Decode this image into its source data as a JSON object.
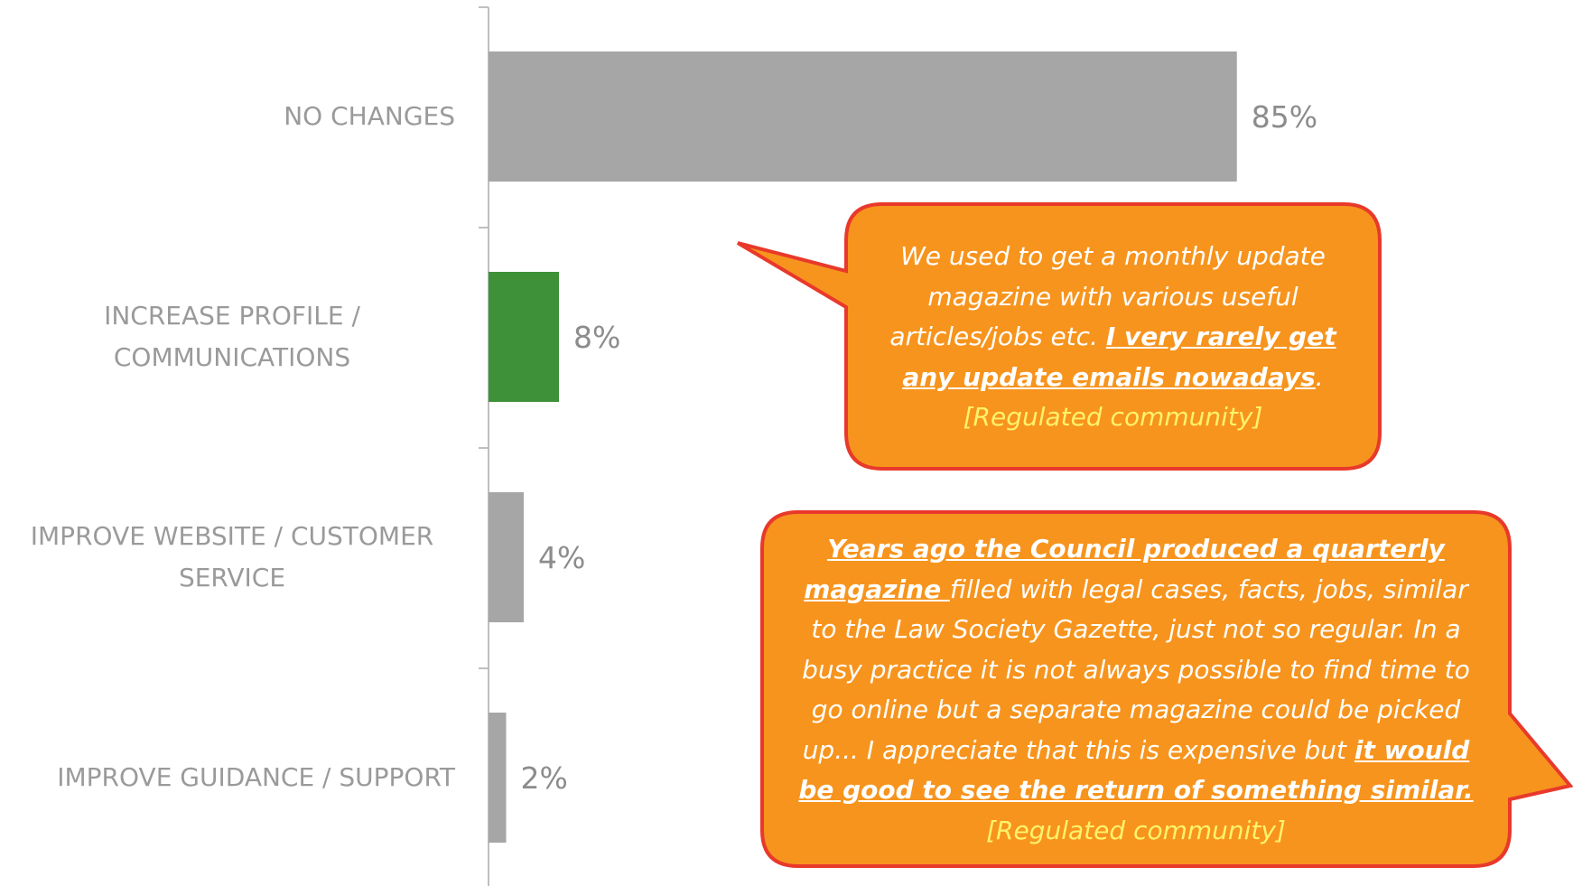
{
  "chart_data": {
    "type": "bar",
    "orientation": "horizontal",
    "categories": [
      "NO CHANGES",
      "INCREASE PROFILE / COMMUNICATIONS",
      "IMPROVE WEBSITE / CUSTOMER SERVICE",
      "IMPROVE GUIDANCE / SUPPORT"
    ],
    "values": [
      85,
      8,
      4,
      2
    ],
    "value_labels": [
      "85%",
      "8%",
      "4%",
      "2%"
    ],
    "colors": [
      "#a6a6a6",
      "#3e9139",
      "#a6a6a6",
      "#a6a6a6"
    ],
    "xlim": [
      0,
      100
    ],
    "annotations": [
      [
        {
          "text": "We used to get a monthly update magazine with various useful articles/jobs etc. ",
          "style": "plain"
        },
        {
          "text": "I very rarely get any update emails nowadays",
          "style": "emphasis"
        },
        {
          "text": ".",
          "style": "plain"
        },
        {
          "text": "[Regulated community]",
          "style": "source"
        }
      ],
      [
        {
          "text": "Years ago the Council produced a quarterly magazine ",
          "style": "emphasis"
        },
        {
          "text": "filled with legal cases, facts, jobs, similar to the Law Society Gazette, just not so regular. In a busy practice it is not always possible to find time to go online but a separate magazine could be picked up... I appreciate that this is expensive but ",
          "style": "plain"
        },
        {
          "text": "it would be good to see the return of something similar. ",
          "style": "emphasis"
        },
        {
          "text": "[Regulated community]",
          "style": "source"
        }
      ]
    ]
  }
}
